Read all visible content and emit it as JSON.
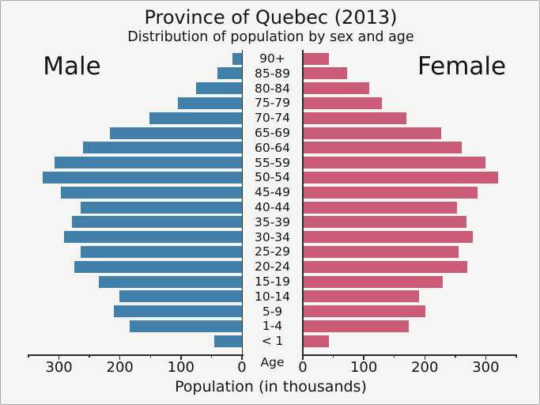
{
  "chart_data": {
    "type": "bar",
    "variant": "population-pyramid",
    "title": "Province of Quebec (2013)",
    "subtitle": "Distribution of population by sex and age",
    "xlabel": "Population (in thousands)",
    "center_axis_label": "Age",
    "left_series_label": "Male",
    "right_series_label": "Female",
    "age_groups": [
      "90+",
      "85-89",
      "80-84",
      "75-79",
      "70-74",
      "65-69",
      "60-64",
      "55-59",
      "50-54",
      "45-49",
      "40-44",
      "35-39",
      "30-34",
      "25-29",
      "20-24",
      "15-19",
      "10-14",
      "5-9",
      "1-4",
      "< 1"
    ],
    "series": [
      {
        "name": "Male",
        "side": "left",
        "color": "#4180ab",
        "values": [
          15,
          40,
          75,
          105,
          152,
          216,
          261,
          307,
          327,
          297,
          265,
          279,
          292,
          265,
          275,
          235,
          201,
          210,
          184,
          45
        ]
      },
      {
        "name": "Female",
        "side": "right",
        "color": "#cb5c77",
        "values": [
          43,
          73,
          109,
          130,
          170,
          227,
          260,
          300,
          320,
          287,
          253,
          268,
          279,
          256,
          270,
          229,
          191,
          201,
          174,
          43
        ]
      }
    ],
    "xlim": [
      0,
      350
    ],
    "xticks_major": [
      0,
      100,
      200,
      300
    ],
    "xticks_minor": [
      50,
      150,
      250,
      350
    ],
    "grid": false,
    "legend_position": "none",
    "colors": {
      "male": "#4180ab",
      "female": "#cb5c77",
      "axis": "#2b2b2b",
      "background": "#f5f5f3",
      "frame_border": "#a8a8a8",
      "text": "#141414"
    }
  }
}
